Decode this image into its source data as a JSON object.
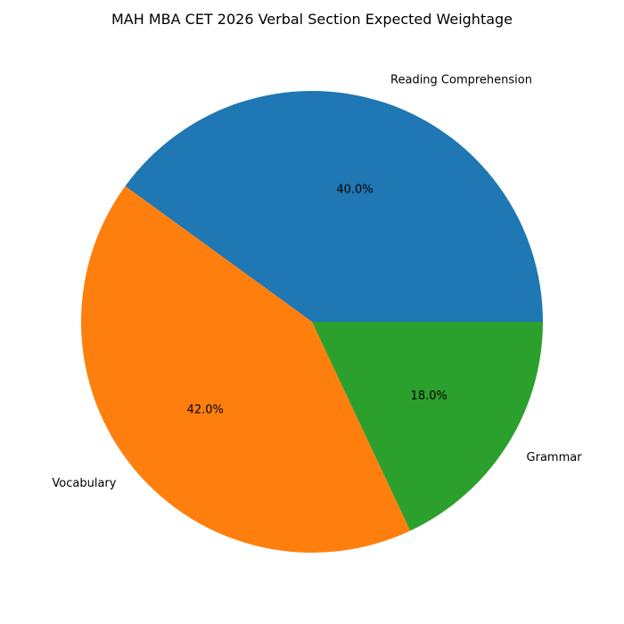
{
  "chart_data": {
    "type": "pie",
    "title": "MAH MBA CET 2026 Verbal Section Expected Weightage",
    "start_angle_deg": 0,
    "direction": "counterclockwise",
    "slices": [
      {
        "label": "Reading Comprehension",
        "value": 40.0,
        "pct_label": "40.0%",
        "color": "#1f77b4"
      },
      {
        "label": "Vocabulary",
        "value": 42.0,
        "pct_label": "42.0%",
        "color": "#ff7f0e"
      },
      {
        "label": "Grammar",
        "value": 18.0,
        "pct_label": "18.0%",
        "color": "#2ca02c"
      }
    ]
  }
}
